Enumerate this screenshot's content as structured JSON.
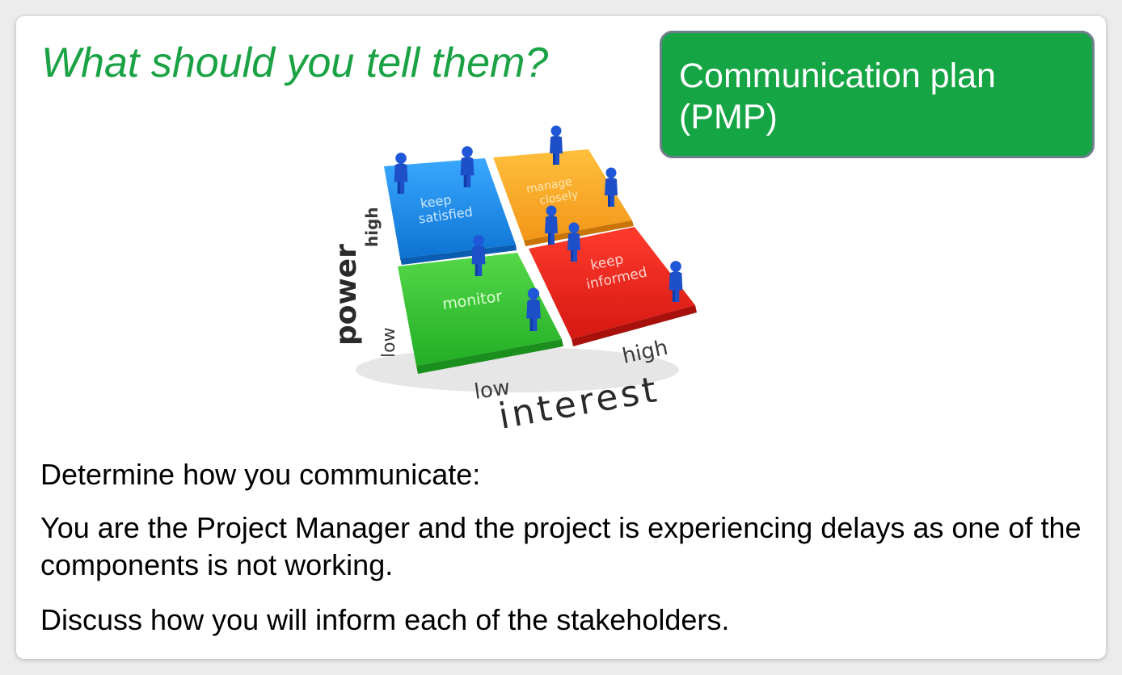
{
  "slide": {
    "title": "What should you tell them?",
    "callout": {
      "line1": "Communication plan",
      "line2": "(PMP)",
      "bg_color": "#16a544",
      "border_color": "#6e7f8c"
    },
    "matrix": {
      "quadrants": {
        "top_left": {
          "label_line1": "keep",
          "label_line2": "satisfied",
          "color": "#1e8fe0"
        },
        "top_right": {
          "label_line1": "manage",
          "label_line2": "closely",
          "color": "#f6a623"
        },
        "bottom_left": {
          "label": "monitor",
          "color": "#3cc83a"
        },
        "bottom_right": {
          "label_line1": "keep",
          "label_line2": "informed",
          "color": "#e8261e"
        }
      },
      "y_axis": {
        "title": "power",
        "high": "high",
        "low": "low"
      },
      "x_axis": {
        "title": "interest",
        "low": "low",
        "high": "high"
      },
      "figure_icon": "person-figure-icon"
    },
    "paragraphs": {
      "p1": "Determine how you communicate:",
      "p2": "You are the Project Manager and the project is experiencing delays as one of the components is not working.",
      "p3": "Discuss how you will inform each of the stakeholders."
    },
    "title_color": "#1aa244"
  }
}
